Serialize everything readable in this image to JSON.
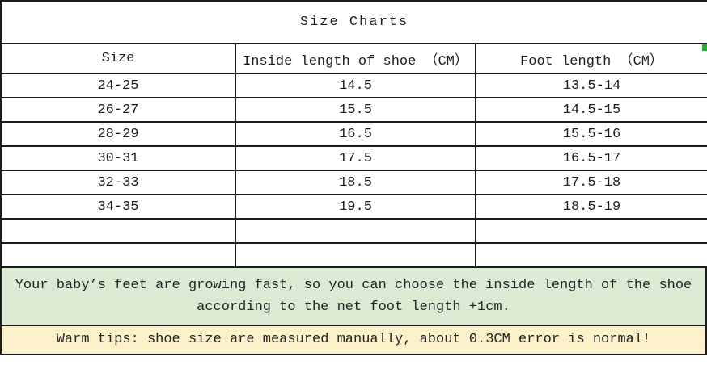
{
  "title": "Size Charts",
  "table": {
    "headers": [
      "Size",
      "Inside length of shoe （CM）",
      "Foot length （CM）"
    ],
    "rows": [
      {
        "size": "24-25",
        "inside_length": "14.5",
        "foot_length": "13.5-14"
      },
      {
        "size": "26-27",
        "inside_length": "15.5",
        "foot_length": "14.5-15"
      },
      {
        "size": "28-29",
        "inside_length": "16.5",
        "foot_length": "15.5-16"
      },
      {
        "size": "30-31",
        "inside_length": "17.5",
        "foot_length": "16.5-17"
      },
      {
        "size": "32-33",
        "inside_length": "18.5",
        "foot_length": "17.5-18"
      },
      {
        "size": "34-35",
        "inside_length": "19.5",
        "foot_length": "18.5-19"
      },
      {
        "size": "",
        "inside_length": "",
        "foot_length": ""
      },
      {
        "size": "",
        "inside_length": "",
        "foot_length": ""
      }
    ]
  },
  "notes": {
    "growth_tip": "Your baby’s feet are growing fast, so you can choose the inside length of the shoe according to the net foot length +1cm.",
    "warm_tip": "Warm tips: shoe size are measured manually, about 0.3CM error is normal!"
  },
  "colors": {
    "border": "#1c1c1c",
    "growth_tip_background": "#dcead3",
    "warm_tip_background": "#fbf0ca",
    "edge_artifact_green": "#2ea836"
  }
}
